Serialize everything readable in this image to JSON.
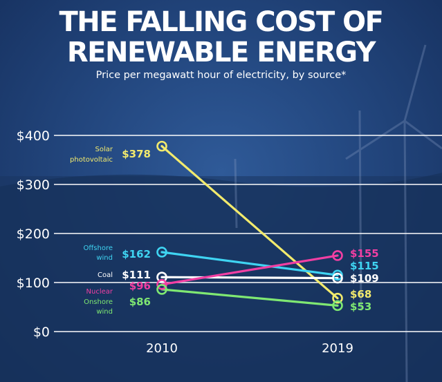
{
  "header": {
    "title_line1": "THE FALLING COST OF",
    "title_line2": "RENEWABLE ENERGY",
    "subtitle": "Price per megawatt hour of electricity, by source*"
  },
  "chart_data": {
    "type": "line",
    "categories": [
      "2010",
      "2019"
    ],
    "ylim": [
      0,
      400
    ],
    "y_ticks": [
      "$0",
      "$100",
      "$200",
      "$300",
      "$400"
    ],
    "grid": true,
    "series": [
      {
        "key": "solar",
        "name_lines": [
          "Solar",
          "photovoltaic"
        ],
        "color": "#f2ea6d",
        "values": [
          378,
          68
        ],
        "labels": [
          "$378",
          "$68"
        ]
      },
      {
        "key": "offshore",
        "name_lines": [
          "Offshore",
          "wind"
        ],
        "color": "#3fd4f2",
        "values": [
          162,
          115
        ],
        "labels": [
          "$162",
          "$115"
        ]
      },
      {
        "key": "coal",
        "name_lines": [
          "Coal"
        ],
        "color": "#ffffff",
        "values": [
          111,
          109
        ],
        "labels": [
          "$111",
          "$109"
        ]
      },
      {
        "key": "nuclear",
        "name_lines": [
          "Nuclear"
        ],
        "color": "#f23fa3",
        "values": [
          96,
          155
        ],
        "labels": [
          "$96",
          "$155"
        ]
      },
      {
        "key": "onshore",
        "name_lines": [
          "Onshore",
          "wind"
        ],
        "color": "#7fe872",
        "values": [
          86,
          53
        ],
        "labels": [
          "$86",
          "$53"
        ]
      }
    ]
  }
}
